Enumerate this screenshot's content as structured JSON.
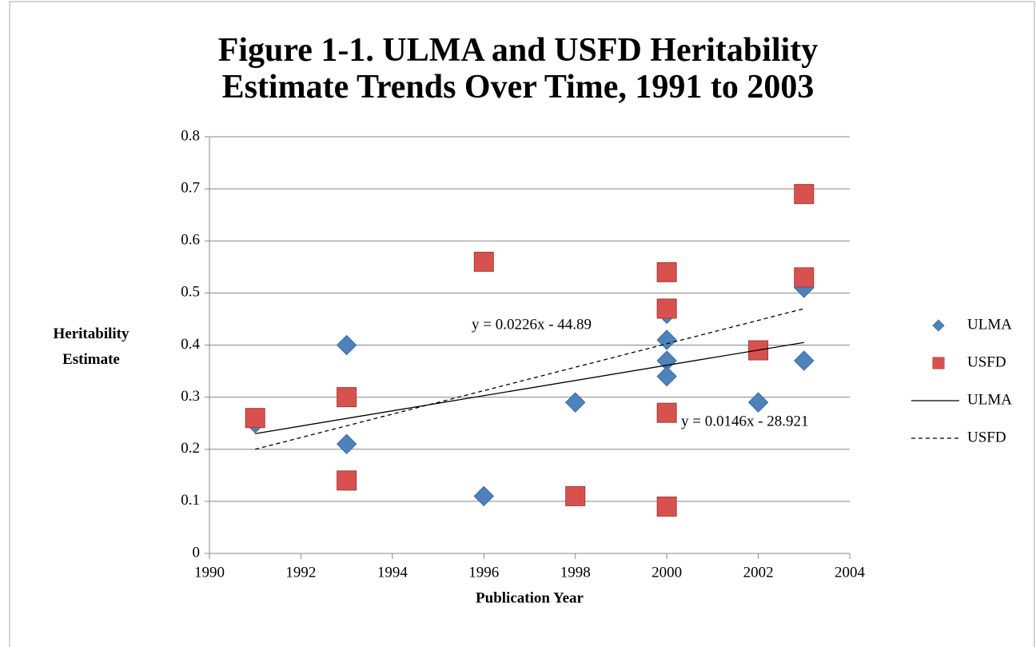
{
  "chart_data": {
    "type": "scatter",
    "title": "Figure 1-1. ULMA and USFD Heritability Estimate Trends Over Time, 1991 to 2003",
    "x_label": "Publication Year",
    "y_label": "Heritability Estimate",
    "xlim": [
      1990,
      2004
    ],
    "xticks": [
      1990,
      1992,
      1994,
      1996,
      1998,
      2000,
      2002,
      2004
    ],
    "ylim": [
      0,
      0.8
    ],
    "yticks": [
      0,
      0.1,
      0.2,
      0.3,
      0.4,
      0.5,
      0.6,
      0.7,
      0.8
    ],
    "grid": true,
    "legend": "right",
    "series": [
      {
        "name": "ULMA",
        "color": "#4f81bd",
        "marker": "diamond",
        "x": [
          1991,
          1993,
          1993,
          1996,
          1998,
          2000,
          2000,
          2000,
          2000,
          2002,
          2003,
          2003
        ],
        "values": [
          0.25,
          0.4,
          0.21,
          0.11,
          0.29,
          0.46,
          0.41,
          0.37,
          0.34,
          0.29,
          0.51,
          0.37
        ]
      },
      {
        "name": "USFD",
        "color": "#d9514e",
        "marker": "square",
        "x": [
          1991,
          1993,
          1993,
          1996,
          1998,
          2000,
          2000,
          2000,
          2000,
          2002,
          2003,
          2003
        ],
        "values": [
          0.26,
          0.3,
          0.14,
          0.56,
          0.11,
          0.54,
          0.47,
          0.27,
          0.09,
          0.39,
          0.69,
          0.53
        ]
      },
      {
        "name": "ULMA",
        "color": "#000000",
        "line_style": "solid",
        "x": [
          1991,
          2003
        ],
        "values": [
          0.23,
          0.405
        ]
      },
      {
        "name": "USFD",
        "color": "#000000",
        "line_style": "dashed",
        "x": [
          1991,
          2003
        ],
        "values": [
          0.2,
          0.47
        ]
      }
    ],
    "annotations": [
      "y = 0.0226x - 44.89",
      "y = 0.0146x - 28.921"
    ]
  }
}
